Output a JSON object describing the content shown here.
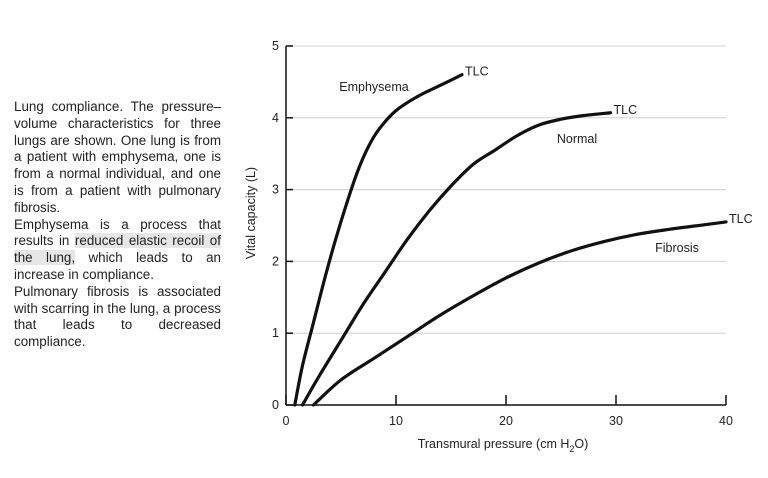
{
  "caption": {
    "p1": "Lung compliance. The pressure–volume characteristics for three lungs are shown. One lung is from a patient with emphysema, one is from a normal individual, and one is from a patient with pulmonary fibrosis.",
    "p2_before": "Emphysema is a process that results in ",
    "p2_highlight": "reduced elastic recoil of the lung,",
    "p2_after": " which leads to an increase in compliance.",
    "p3": "Pulmonary fibrosis is associated with scarring in the lung, a process that leads to decreased compliance."
  },
  "chart_data": {
    "type": "line",
    "xlabel_main": "Transmural pressure (cm H",
    "xlabel_sub": "2",
    "xlabel_end": "O)",
    "ylabel": "Vital capacity (L)",
    "xlim": [
      0,
      40
    ],
    "ylim": [
      0,
      5
    ],
    "xticks": [
      0,
      10,
      20,
      30,
      40
    ],
    "yticks": [
      0,
      1,
      2,
      3,
      4,
      5
    ],
    "grid": "horizontal",
    "series": [
      {
        "name": "Emphysema",
        "end_label": "TLC",
        "x": [
          0.8,
          1.5,
          2.5,
          3.5,
          4.5,
          5.5,
          6.5,
          7.5,
          8.5,
          10,
          12,
          14,
          16
        ],
        "y": [
          0.0,
          0.55,
          1.15,
          1.75,
          2.3,
          2.8,
          3.25,
          3.6,
          3.85,
          4.1,
          4.3,
          4.45,
          4.6
        ]
      },
      {
        "name": "Normal",
        "end_label": "TLC",
        "x": [
          1.5,
          3,
          5,
          7,
          9,
          11,
          13,
          15,
          17,
          19,
          21,
          23,
          25,
          27,
          29.5
        ],
        "y": [
          0.0,
          0.4,
          0.9,
          1.4,
          1.85,
          2.3,
          2.7,
          3.05,
          3.35,
          3.55,
          3.75,
          3.9,
          3.98,
          4.03,
          4.07
        ]
      },
      {
        "name": "Fibrosis",
        "end_label": "TLC",
        "x": [
          2.5,
          5,
          8,
          11,
          14,
          17,
          20,
          23,
          26,
          29,
          32,
          35,
          38,
          40
        ],
        "y": [
          0.0,
          0.35,
          0.65,
          0.95,
          1.25,
          1.52,
          1.77,
          1.98,
          2.15,
          2.28,
          2.38,
          2.45,
          2.51,
          2.55
        ]
      }
    ]
  }
}
